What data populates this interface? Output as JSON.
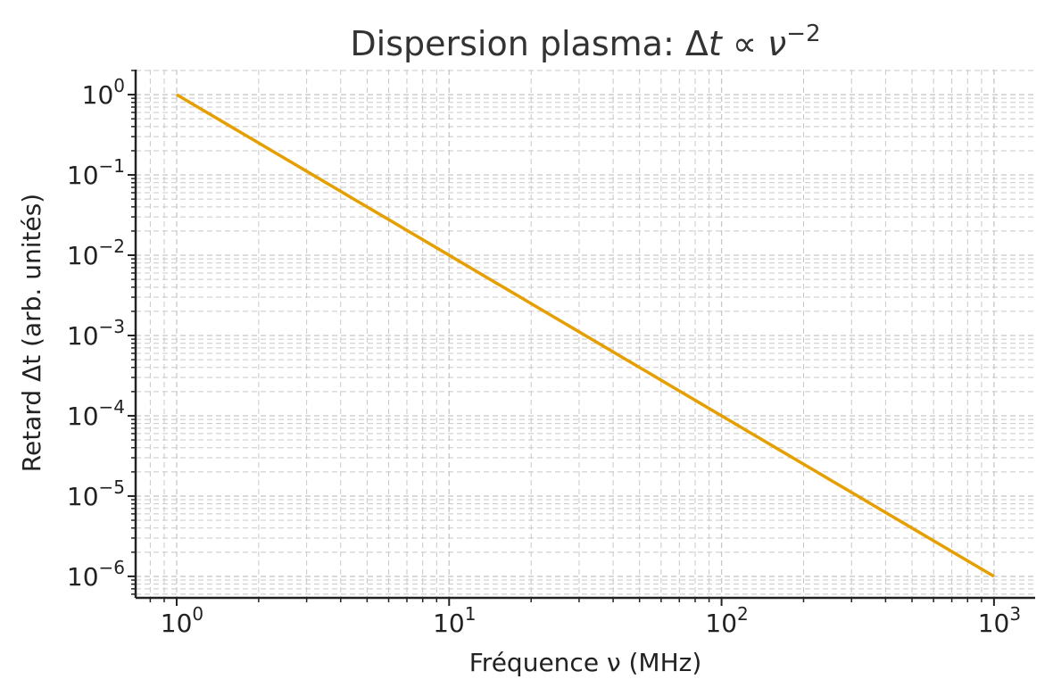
{
  "chart_data": {
    "type": "line",
    "title": "Dispersion plasma: Δt ∝ ν⁻²",
    "title_parts": {
      "base": "Dispersion plasma: Δ",
      "t": "t",
      "prop": " ∝ ",
      "nu": "ν",
      "exp": "−2"
    },
    "xlabel": "Fréquence ν (MHz)",
    "ylabel": "Retard Δt (arb. unités)",
    "xscale": "log",
    "yscale": "log",
    "xlim": [
      0.707,
      1416
    ],
    "ylim": [
      5.4e-07,
      2.05
    ],
    "grid": "major and minor, dashed",
    "x_ticks": [
      {
        "base": "10",
        "exp": "0",
        "value": 1
      },
      {
        "base": "10",
        "exp": "1",
        "value": 10
      },
      {
        "base": "10",
        "exp": "2",
        "value": 100
      },
      {
        "base": "10",
        "exp": "3",
        "value": 1000
      }
    ],
    "y_ticks": [
      {
        "base": "10",
        "exp": "0",
        "value": 1
      },
      {
        "base": "10",
        "exp": "−1",
        "value": 0.1
      },
      {
        "base": "10",
        "exp": "−2",
        "value": 0.01
      },
      {
        "base": "10",
        "exp": "−3",
        "value": 0.001
      },
      {
        "base": "10",
        "exp": "−4",
        "value": 0.0001
      },
      {
        "base": "10",
        "exp": "−5",
        "value": 1e-05
      },
      {
        "base": "10",
        "exp": "−6",
        "value": 1e-06
      }
    ],
    "series": [
      {
        "name": "Δt ∝ ν⁻²",
        "color": "#E69F00",
        "x": [
          1,
          1000
        ],
        "y": [
          1,
          1e-06
        ],
        "function": "x^-2"
      }
    ]
  }
}
